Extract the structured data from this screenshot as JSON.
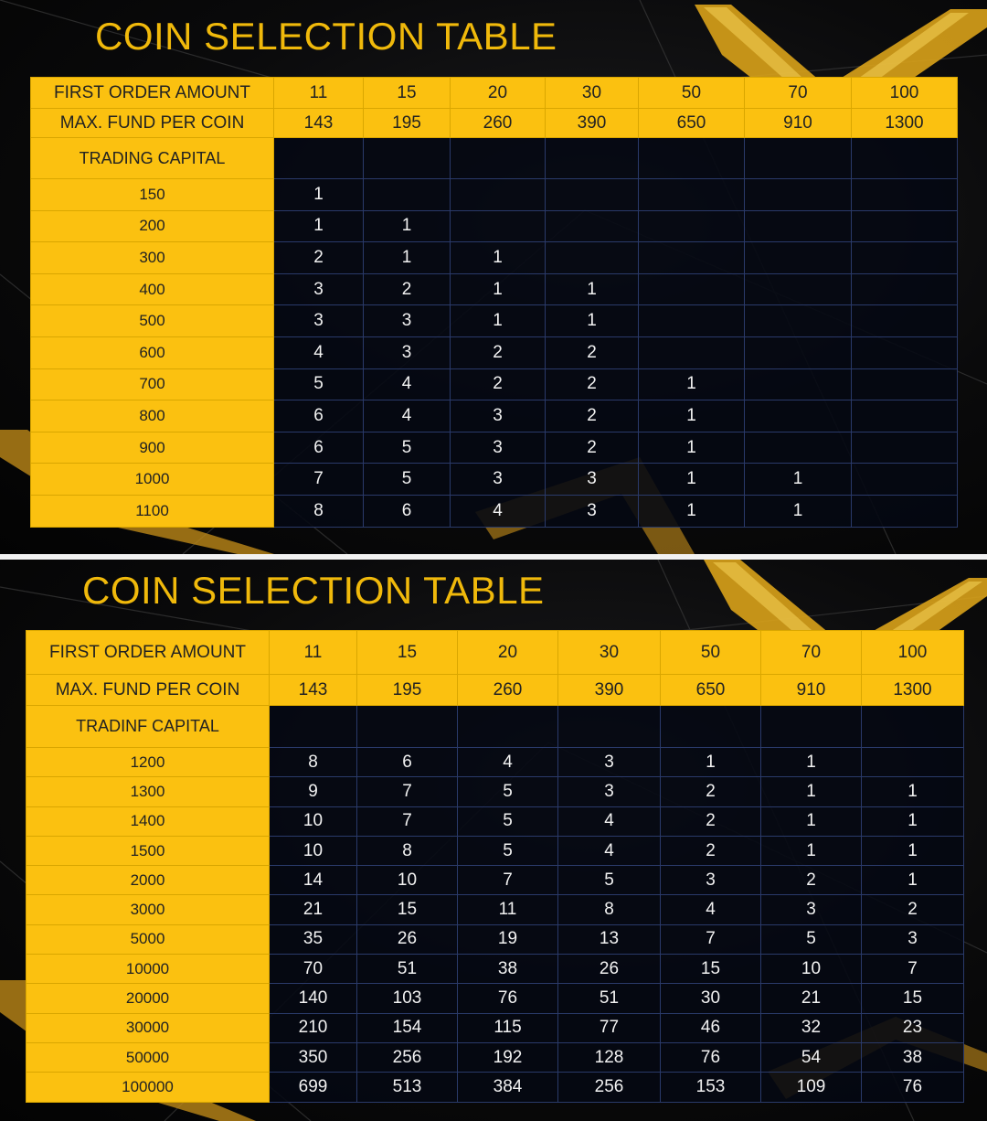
{
  "colors": {
    "gold": "#fbc110",
    "title": "#f0b90b",
    "dark": "#050812",
    "grid": "#2a3a6a"
  },
  "tables": [
    {
      "title": "COIN SELECTION TABLE",
      "first_order_label": "FIRST ORDER AMOUNT",
      "max_fund_label": "MAX. FUND PER  COIN",
      "capital_label": "TRADING CAPITAL",
      "first_order": [
        "11",
        "15",
        "20",
        "30",
        "50",
        "70",
        "100"
      ],
      "max_fund": [
        "143",
        "195",
        "260",
        "390",
        "650",
        "910",
        "1300"
      ],
      "rows": [
        {
          "capital": "150",
          "values": [
            "1",
            "",
            "",
            "",
            "",
            "",
            ""
          ]
        },
        {
          "capital": "200",
          "values": [
            "1",
            "1",
            "",
            "",
            "",
            "",
            ""
          ]
        },
        {
          "capital": "300",
          "values": [
            "2",
            "1",
            "1",
            "",
            "",
            "",
            ""
          ]
        },
        {
          "capital": "400",
          "values": [
            "3",
            "2",
            "1",
            "1",
            "",
            "",
            ""
          ]
        },
        {
          "capital": "500",
          "values": [
            "3",
            "3",
            "1",
            "1",
            "",
            "",
            ""
          ]
        },
        {
          "capital": "600",
          "values": [
            "4",
            "3",
            "2",
            "2",
            "",
            "",
            ""
          ]
        },
        {
          "capital": "700",
          "values": [
            "5",
            "4",
            "2",
            "2",
            "1",
            "",
            ""
          ]
        },
        {
          "capital": "800",
          "values": [
            "6",
            "4",
            "3",
            "2",
            "1",
            "",
            ""
          ]
        },
        {
          "capital": "900",
          "values": [
            "6",
            "5",
            "3",
            "2",
            "1",
            "",
            ""
          ]
        },
        {
          "capital": "1000",
          "values": [
            "7",
            "5",
            "3",
            "3",
            "1",
            "1",
            ""
          ]
        },
        {
          "capital": "1100",
          "values": [
            "8",
            "6",
            "4",
            "3",
            "1",
            "1",
            ""
          ]
        }
      ]
    },
    {
      "title": "COIN SELECTION TABLE",
      "first_order_label": "FIRST ORDER AMOUNT",
      "max_fund_label": "MAX. FUND PER COIN",
      "capital_label": "TRADINF CAPITAL",
      "first_order": [
        "11",
        "15",
        "20",
        "30",
        "50",
        "70",
        "100"
      ],
      "max_fund": [
        "143",
        "195",
        "260",
        "390",
        "650",
        "910",
        "1300"
      ],
      "rows": [
        {
          "capital": "1200",
          "values": [
            "8",
            "6",
            "4",
            "3",
            "1",
            "1",
            ""
          ]
        },
        {
          "capital": "1300",
          "values": [
            "9",
            "7",
            "5",
            "3",
            "2",
            "1",
            "1"
          ]
        },
        {
          "capital": "1400",
          "values": [
            "10",
            "7",
            "5",
            "4",
            "2",
            "1",
            "1"
          ]
        },
        {
          "capital": "1500",
          "values": [
            "10",
            "8",
            "5",
            "4",
            "2",
            "1",
            "1"
          ]
        },
        {
          "capital": "2000",
          "values": [
            "14",
            "10",
            "7",
            "5",
            "3",
            "2",
            "1"
          ]
        },
        {
          "capital": "3000",
          "values": [
            "21",
            "15",
            "11",
            "8",
            "4",
            "3",
            "2"
          ]
        },
        {
          "capital": "5000",
          "values": [
            "35",
            "26",
            "19",
            "13",
            "7",
            "5",
            "3"
          ]
        },
        {
          "capital": "10000",
          "values": [
            "70",
            "51",
            "38",
            "26",
            "15",
            "10",
            "7"
          ]
        },
        {
          "capital": "20000",
          "values": [
            "140",
            "103",
            "76",
            "51",
            "30",
            "21",
            "15"
          ]
        },
        {
          "capital": "30000",
          "values": [
            "210",
            "154",
            "115",
            "77",
            "46",
            "32",
            "23"
          ]
        },
        {
          "capital": "50000",
          "values": [
            "350",
            "256",
            "192",
            "128",
            "76",
            "54",
            "38"
          ]
        },
        {
          "capital": "100000",
          "values": [
            "699",
            "513",
            "384",
            "256",
            "153",
            "109",
            "76"
          ]
        }
      ]
    }
  ]
}
